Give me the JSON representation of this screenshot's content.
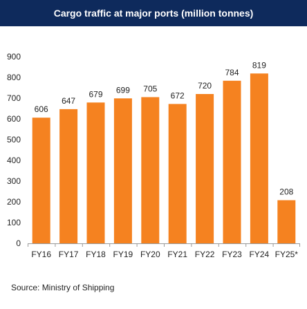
{
  "header": {
    "title": "Cargo traffic at major ports (million tonnes)"
  },
  "footer": {
    "source": "Source: Ministry of Shipping"
  },
  "colors": {
    "title_bg": "#0e2a5c",
    "bar": "#f58220",
    "axis": "#999999",
    "text": "#222222"
  },
  "chart_data": {
    "type": "bar",
    "title": "Cargo traffic at major ports (million tonnes)",
    "xlabel": "",
    "ylabel": "",
    "categories": [
      "FY16",
      "FY17",
      "FY18",
      "FY19",
      "FY20",
      "FY21",
      "FY22",
      "FY23",
      "FY24",
      "FY25*"
    ],
    "values": [
      606,
      647,
      679,
      699,
      705,
      672,
      720,
      784,
      819,
      208
    ],
    "data_labels": [
      "606",
      "647",
      "679",
      "699",
      "705",
      "672",
      "720",
      "784",
      "819",
      "208"
    ],
    "ylim": [
      0,
      900
    ],
    "yticks": [
      0,
      100,
      200,
      300,
      400,
      500,
      600,
      700,
      800,
      900
    ],
    "grid": false,
    "legend": "none"
  }
}
